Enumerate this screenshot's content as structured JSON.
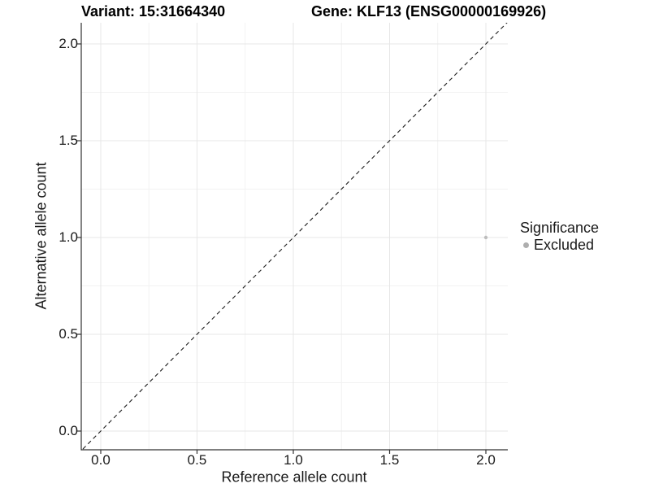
{
  "titles": {
    "left": "Variant: 15:31664340",
    "right": "Gene: KLF13 (ENSG00000169926)"
  },
  "chart_data": {
    "type": "scatter",
    "xlabel": "Reference allele count",
    "ylabel": "Alternative allele count",
    "x_ticks": {
      "values": [
        0,
        0.5,
        1,
        1.5,
        2
      ],
      "labels": [
        "0.0",
        "0.5",
        "1.0",
        "1.5",
        "2.0"
      ]
    },
    "y_ticks": {
      "values": [
        0,
        0.5,
        1,
        1.5,
        2
      ],
      "labels": [
        "0.0",
        "0.5",
        "1.0",
        "1.5",
        "2.0"
      ]
    },
    "xlim": [
      -0.105,
      2.115
    ],
    "ylim": [
      -0.105,
      2.115
    ],
    "grid": {
      "major": true,
      "minor": true
    },
    "reference_line": {
      "equation": "y = x",
      "style": "dashed",
      "from": [
        -0.2,
        -0.2
      ],
      "to": [
        2.3,
        2.3
      ]
    },
    "series": [
      {
        "name": "Excluded",
        "color": "#bdbdbd",
        "points": [
          {
            "x": 2,
            "y": 1
          }
        ]
      }
    ],
    "legend": {
      "title": "Significance",
      "position": "right",
      "entries": [
        {
          "label": "Excluded",
          "color": "#aeaeae"
        }
      ]
    }
  },
  "colors": {
    "background": "#ffffff",
    "axis": "#333333",
    "grid_major": "#e7e7e7",
    "grid_minor": "#f2f2f2",
    "reference_line": "#1a1a1a",
    "text": "#1a1a1a"
  }
}
